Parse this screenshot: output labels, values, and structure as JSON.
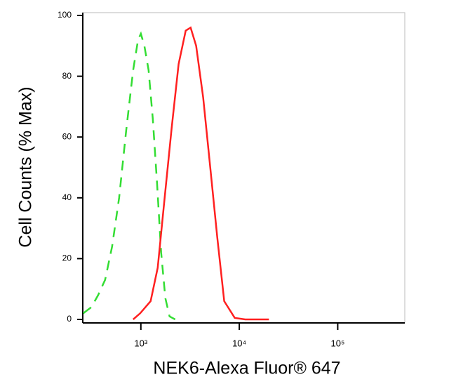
{
  "chart_data": {
    "type": "line",
    "xlabel": "NEK6-Alexa Fluor® 647",
    "ylabel": "Cell Counts (% Max)",
    "xscale": "log",
    "xlim": [
      257,
      480000
    ],
    "ylim": [
      0,
      100
    ],
    "xticks": [
      {
        "value": 1000,
        "label": "10³"
      },
      {
        "value": 10000,
        "label": "10⁴"
      },
      {
        "value": 100000,
        "label": "10⁵"
      }
    ],
    "yticks": [
      0,
      20,
      40,
      60,
      80,
      100
    ],
    "series": [
      {
        "color": "#33dd33",
        "dashed": true,
        "x": [
          260,
          313,
          368,
          433,
          510,
          601,
          709,
          835,
          937,
          1000,
          1086,
          1197,
          1321,
          1458,
          1608,
          1774,
          1958,
          2232
        ],
        "values": [
          2,
          4,
          8,
          13,
          24,
          40,
          62,
          82,
          92,
          94,
          90,
          82,
          66,
          45,
          22,
          7,
          1,
          0
        ]
      },
      {
        "color": "#ff2020",
        "dashed": false,
        "x": [
          835,
          984,
          1257,
          1482,
          1745,
          2055,
          2420,
          2854,
          3200,
          3647,
          4295,
          5067,
          5970,
          7031,
          8990,
          11500,
          20000
        ],
        "values": [
          0,
          2,
          6,
          17,
          40,
          63,
          84,
          95,
          96,
          90,
          73,
          50,
          27,
          6,
          0.5,
          0,
          0
        ]
      }
    ]
  }
}
